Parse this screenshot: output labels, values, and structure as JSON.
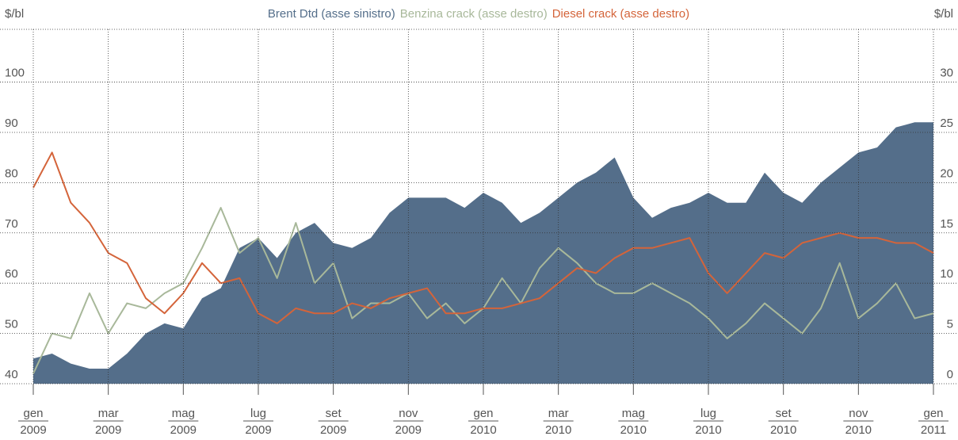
{
  "chart_data": {
    "type": "area-line",
    "y_label": "$/bl",
    "y2_label": "$/bl",
    "xlim": [
      0,
      24
    ],
    "xticks": [
      {
        "value": 0,
        "label": "gen",
        "year": "2009"
      },
      {
        "value": 2,
        "label": "mar",
        "year": "2009"
      },
      {
        "value": 4,
        "label": "mag",
        "year": "2009"
      },
      {
        "value": 6,
        "label": "lug",
        "year": "2009"
      },
      {
        "value": 8,
        "label": "set",
        "year": "2009"
      },
      {
        "value": 10,
        "label": "nov",
        "year": "2009"
      },
      {
        "value": 12,
        "label": "gen",
        "year": "2010"
      },
      {
        "value": 14,
        "label": "mar",
        "year": "2010"
      },
      {
        "value": 16,
        "label": "mag",
        "year": "2010"
      },
      {
        "value": 18,
        "label": "lug",
        "year": "2010"
      },
      {
        "value": 20,
        "label": "set",
        "year": "2010"
      },
      {
        "value": 22,
        "label": "nov",
        "year": "2010"
      },
      {
        "value": 24,
        "label": "gen",
        "year": "2011"
      }
    ],
    "ylim": [
      40,
      110.5
    ],
    "yticks": [
      40,
      50,
      60,
      70,
      80,
      90,
      100
    ],
    "y2lim": [
      0,
      35.25
    ],
    "y2ticks": [
      0,
      5,
      10,
      15,
      20,
      25,
      30
    ],
    "grid": true,
    "x": [
      0,
      0.5,
      1,
      1.5,
      2,
      2.5,
      3,
      3.5,
      4,
      4.5,
      5,
      5.5,
      6,
      6.5,
      7,
      7.5,
      8,
      8.5,
      9,
      9.5,
      10,
      10.5,
      11,
      11.5,
      12,
      12.5,
      13,
      13.5,
      14,
      14.5,
      15,
      15.5,
      16,
      16.5,
      17,
      17.5,
      18,
      18.5,
      19,
      19.5,
      20,
      20.5,
      21,
      21.5,
      22,
      22.5,
      23,
      23.5,
      24
    ],
    "series": [
      {
        "name": "Brent Dtd (asse sinistro)",
        "color": "#546e8a",
        "kind": "area",
        "values": [
          45,
          46,
          44,
          43,
          43,
          46,
          50,
          52,
          51,
          57,
          59,
          67,
          69,
          65,
          70,
          72,
          68,
          67,
          69,
          74,
          77,
          77,
          77,
          75,
          78,
          76,
          72,
          74,
          77,
          80,
          82,
          85,
          77,
          73,
          75,
          76,
          78,
          76,
          76,
          82,
          78,
          76,
          80,
          83,
          86,
          87,
          91,
          92,
          92
        ]
      },
      {
        "name": "Benzina crack (asse destro)",
        "color": "#a8b89a",
        "kind": "line",
        "axis": "y2",
        "values": [
          1,
          5,
          4.5,
          9,
          5,
          8,
          7.5,
          9,
          10,
          13.5,
          17.5,
          13,
          14.5,
          10.5,
          16,
          10,
          12,
          6.5,
          8,
          8,
          9,
          6.5,
          8,
          6,
          7.5,
          10.5,
          8,
          11.5,
          13.5,
          12,
          10,
          9,
          9,
          10,
          9,
          8,
          6.5,
          4.5,
          6,
          8,
          6.5,
          5,
          7.5,
          12,
          6.5,
          8,
          10,
          6.5,
          7
        ]
      },
      {
        "name": "Diesel crack (asse destro)",
        "color": "#d4643a",
        "kind": "line",
        "axis": "y2",
        "values": [
          19.5,
          23,
          18,
          16,
          13,
          12,
          8.5,
          7,
          9,
          12,
          10,
          10.5,
          7,
          6,
          7.5,
          7,
          7,
          8,
          7.5,
          8.5,
          9,
          9.5,
          7,
          7,
          7.5,
          7.5,
          8,
          8.5,
          10,
          11.5,
          11,
          12.5,
          13.5,
          13.5,
          14,
          14.5,
          11,
          9,
          11,
          13,
          12.5,
          14,
          14.5,
          15,
          14.5,
          14.5,
          14,
          14,
          13
        ]
      }
    ]
  }
}
